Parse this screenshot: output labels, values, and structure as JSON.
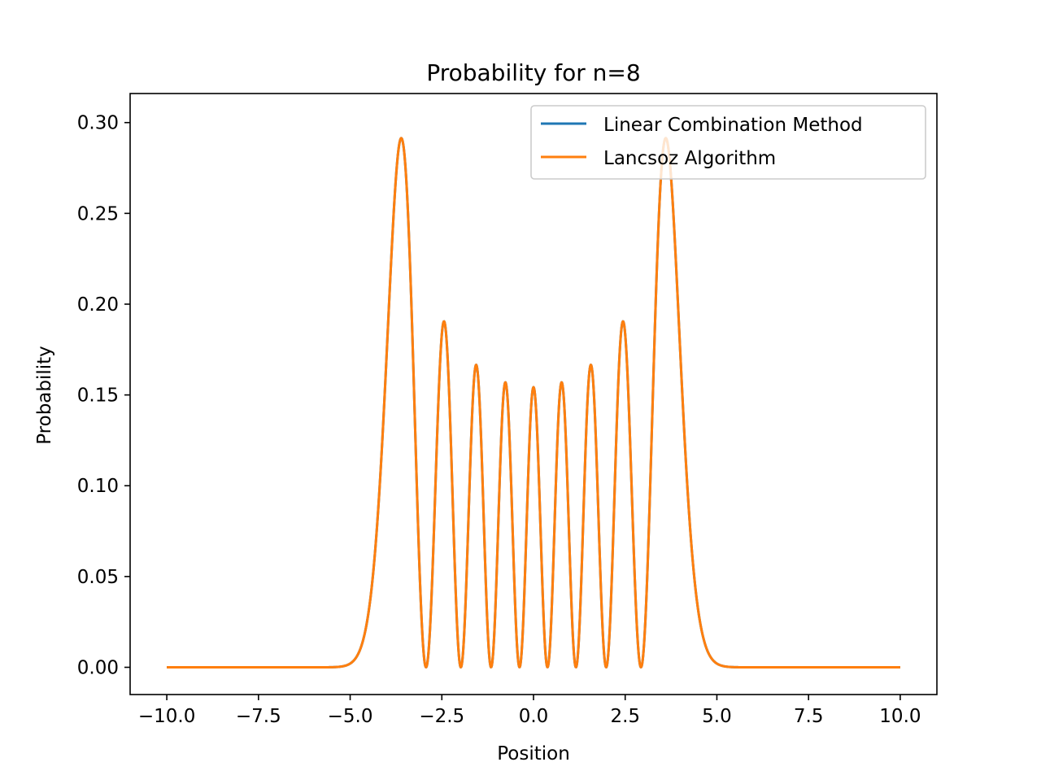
{
  "chart_data": {
    "type": "line",
    "title": "Probability for n=8",
    "xlabel": "Position",
    "ylabel": "Probability",
    "xlim": [
      -11.0,
      11.0
    ],
    "ylim": [
      -0.015,
      0.316
    ],
    "xticks": [
      -10.0,
      -7.5,
      -5.0,
      -2.5,
      0.0,
      2.5,
      5.0,
      7.5,
      10.0
    ],
    "xtick_labels": [
      "−10.0",
      "−7.5",
      "−5.0",
      "−2.5",
      "0.0",
      "2.5",
      "5.0",
      "7.5",
      "10.0"
    ],
    "yticks": [
      0.0,
      0.05,
      0.1,
      0.15,
      0.2,
      0.25,
      0.3
    ],
    "ytick_labels": [
      "0.00",
      "0.05",
      "0.10",
      "0.15",
      "0.20",
      "0.25",
      "0.30"
    ],
    "grid": false,
    "legend_position": "top-right",
    "quantum_number": 8,
    "x_range": [
      -10.0,
      10.0
    ],
    "series": [
      {
        "name": "Linear Combination Method",
        "color": "#1f77b4"
      },
      {
        "name": "Lancsoz Algorithm",
        "color": "#ff7f0e"
      }
    ]
  }
}
